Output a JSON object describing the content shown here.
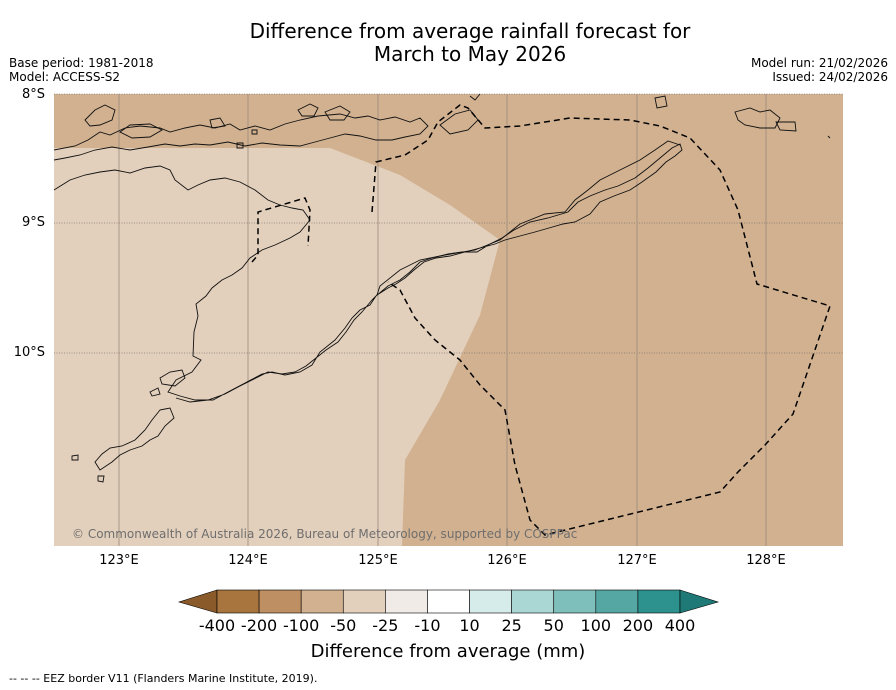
{
  "title_line1": "Difference from average rainfall forecast for",
  "title_line2": "March to May 2026",
  "base_period": "Base period: 1981-2018",
  "model": "Model: ACCESS-S2",
  "model_run": "Model run: 21/02/2026",
  "issued": "Issued: 24/02/2026",
  "lat_labels": [
    "8°S",
    "9°S",
    "10°S"
  ],
  "lon_labels": [
    "123°E",
    "124°E",
    "125°E",
    "126°E",
    "127°E",
    "128°E"
  ],
  "copyright": "© Commonwealth of Australia 2026, Bureau of Meteorology, supported by COSPPac",
  "colorbar": {
    "ticks": [
      "-400",
      "-200",
      "-100",
      "-50",
      "-25",
      "-10",
      "10",
      "25",
      "50",
      "100",
      "200",
      "400"
    ],
    "label": "Difference from average (mm)",
    "colors": [
      "#8b5a2b",
      "#a8753f",
      "#be8f62",
      "#d1b190",
      "#e3d0bc",
      "#f0ebe6",
      "#ffffff",
      "#d6ecea",
      "#aad7d4",
      "#7fbfbb",
      "#55a7a4",
      "#2d918d",
      "#1f7a77"
    ]
  },
  "map": {
    "categories_shown": [
      "-50 to -25",
      "-100 to -50"
    ],
    "fill_light": "#e3d0bc",
    "fill_dark": "#d1b190"
  },
  "footnote": "--  --  -- EEZ border V11 (Flanders Marine Institute, 2019)."
}
